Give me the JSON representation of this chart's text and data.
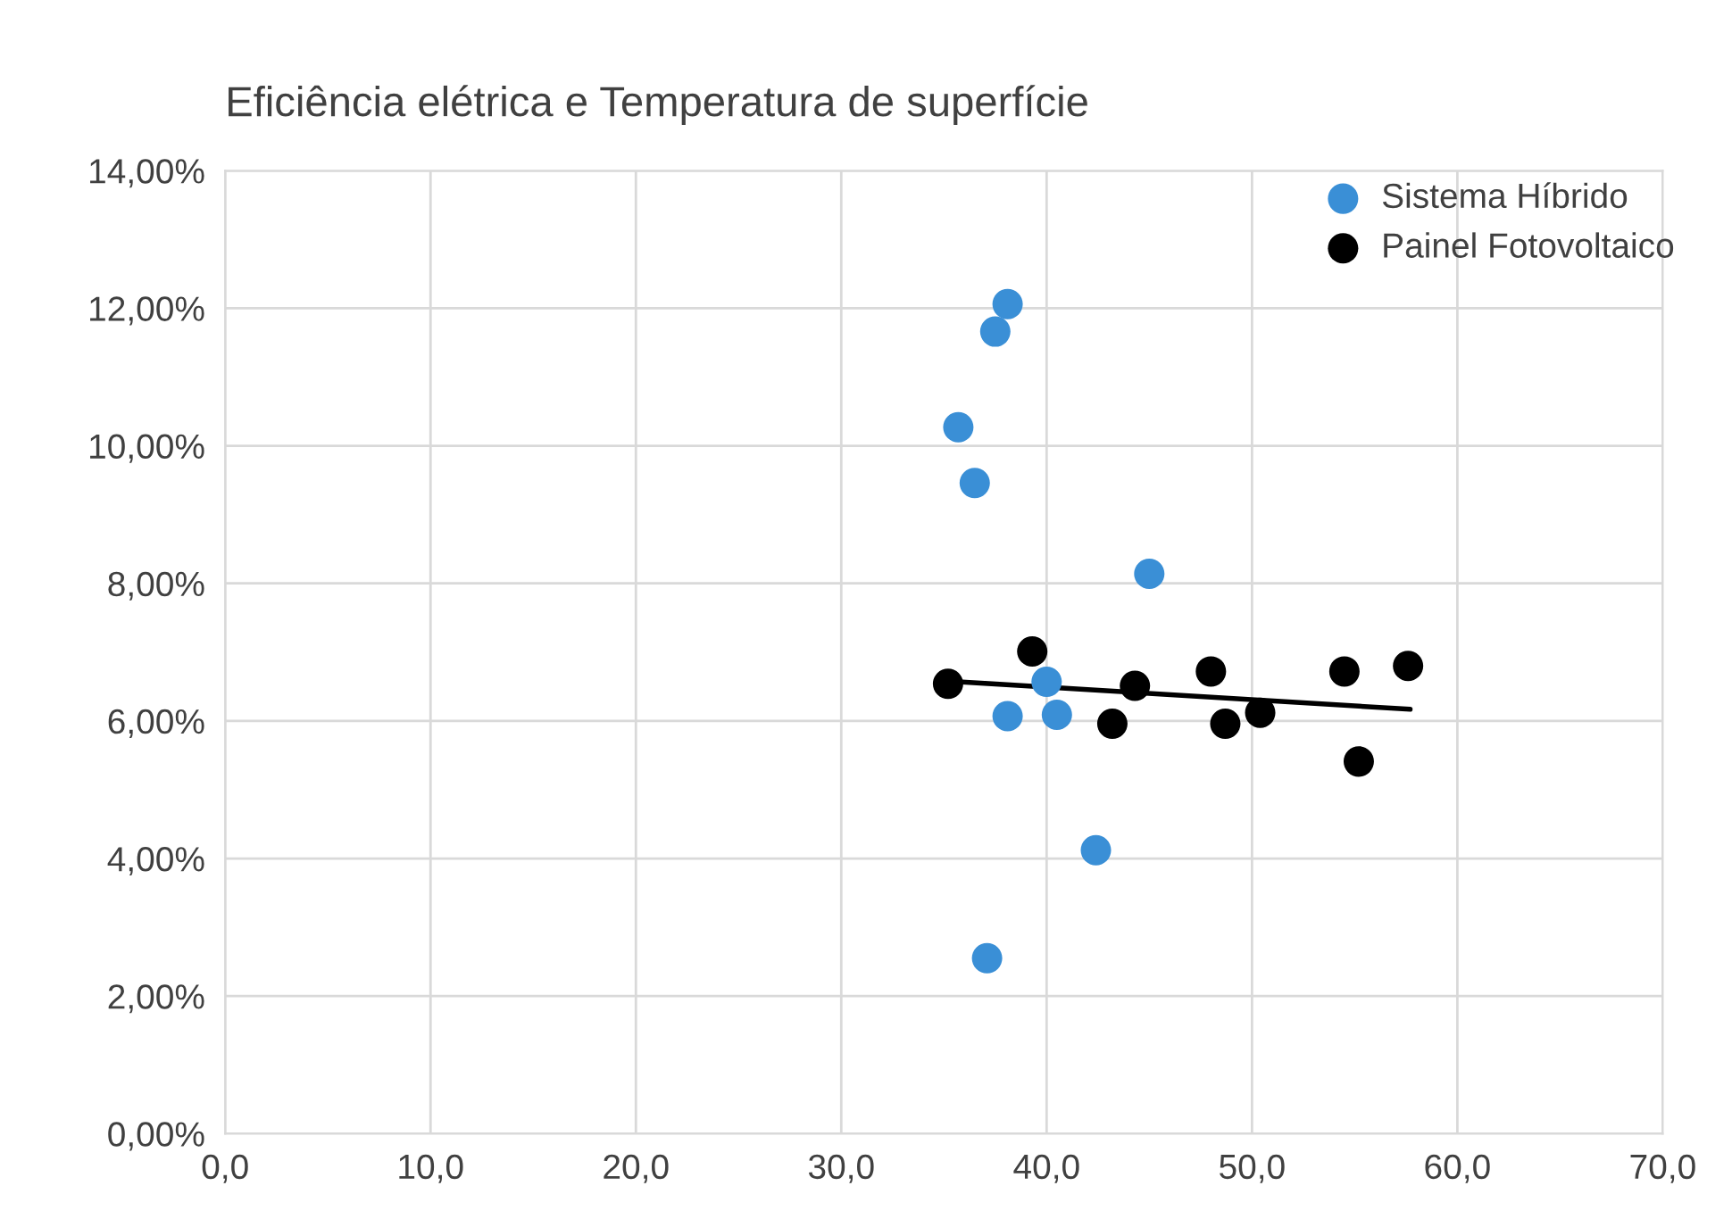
{
  "chart_data": {
    "type": "scatter",
    "title": "Eficiência elétrica e Temperatura de superfície",
    "series": [
      {
        "name": "Sistema Híbrido",
        "marker": "circle",
        "color": "#3a8fd6",
        "x": [
          38.1,
          37.5,
          35.7,
          36.5,
          45.0,
          40.0,
          38.1,
          40.5,
          42.4,
          37.1
        ],
        "values": [
          12.06,
          11.66,
          10.27,
          9.46,
          8.14,
          6.57,
          6.07,
          6.09,
          4.12,
          2.55
        ]
      },
      {
        "name": "Painel Fotovoltaico",
        "marker": "circle",
        "color": "#000000",
        "x": [
          35.2,
          39.3,
          44.3,
          43.2,
          48.0,
          48.7,
          50.4,
          54.5,
          55.2,
          57.6
        ],
        "values": [
          6.54,
          7.01,
          6.51,
          5.96,
          6.72,
          5.96,
          6.12,
          6.72,
          5.41,
          6.8
        ]
      },
      {
        "type": "line",
        "marker": "none",
        "color": "#000000",
        "x": [
          35.7,
          57.7
        ],
        "values": [
          6.57,
          6.17
        ]
      }
    ],
    "xlim": [
      0,
      70
    ],
    "xticks": [
      {
        "value": 0,
        "label": "0,0"
      },
      {
        "value": 10,
        "label": "10,0"
      },
      {
        "value": 20,
        "label": "20,0"
      },
      {
        "value": 30,
        "label": "30,0"
      },
      {
        "value": 40,
        "label": "40,0"
      },
      {
        "value": 50,
        "label": "50,0"
      },
      {
        "value": 60,
        "label": "60,0"
      },
      {
        "value": 70,
        "label": "70,0"
      }
    ],
    "ylim": [
      0,
      14
    ],
    "yticks": [
      {
        "value": 0,
        "label": "0,00%"
      },
      {
        "value": 2,
        "label": "2,00%"
      },
      {
        "value": 4,
        "label": "4,00%"
      },
      {
        "value": 6,
        "label": "6,00%"
      },
      {
        "value": 8,
        "label": "8,00%"
      },
      {
        "value": 10,
        "label": "10,00%"
      },
      {
        "value": 12,
        "label": "12,00%"
      },
      {
        "value": 14,
        "label": "14,00%"
      }
    ],
    "grid": true,
    "legend": "top right"
  }
}
